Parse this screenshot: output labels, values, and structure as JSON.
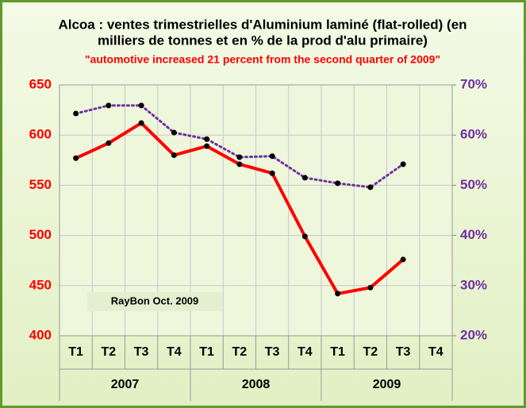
{
  "chart_data": {
    "type": "line",
    "title": [
      "Alcoa : ventes  trimestrielles d'Aluminium laminé (flat-rolled) (en",
      "milliers de tonnes et en % de la prod d'alu primaire)"
    ],
    "subtitle": "\"automotive  increased  21 percent  from the second quarter of 2009\"",
    "annotation": "RayBon Oct. 2009",
    "categories": [
      "T1",
      "T2",
      "T3",
      "T4",
      "T1",
      "T2",
      "T3",
      "T4",
      "T1",
      "T2",
      "T3",
      "T4"
    ],
    "category_groups": [
      "2007",
      "2008",
      "2009"
    ],
    "series": [
      {
        "color": "#ff0000",
        "line_style": "solid",
        "values": [
          577,
          592,
          612,
          580,
          589,
          571,
          562,
          499,
          442,
          448,
          476,
          null
        ]
      },
      {
        "color": "#7030a0",
        "line_style": "dotted",
        "axis": "y2",
        "values": [
          64.3,
          65.9,
          65.9,
          60.5,
          59.2,
          55.6,
          55.8,
          51.5,
          50.4,
          49.6,
          54.2,
          null
        ]
      }
    ],
    "ylim": [
      400,
      650
    ],
    "yticks": [
      400,
      450,
      500,
      550,
      600,
      650
    ],
    "ycolor": "#ff0000",
    "y2lim": [
      20,
      70
    ],
    "y2ticks": [
      {
        "value": 20,
        "label": "20%"
      },
      {
        "value": 30,
        "label": "30%"
      },
      {
        "value": 40,
        "label": "40%"
      },
      {
        "value": 50,
        "label": "50%"
      },
      {
        "value": 60,
        "label": "60%"
      },
      {
        "value": 70,
        "label": "70%"
      }
    ],
    "y2color": "#7030a0",
    "grid": true
  }
}
